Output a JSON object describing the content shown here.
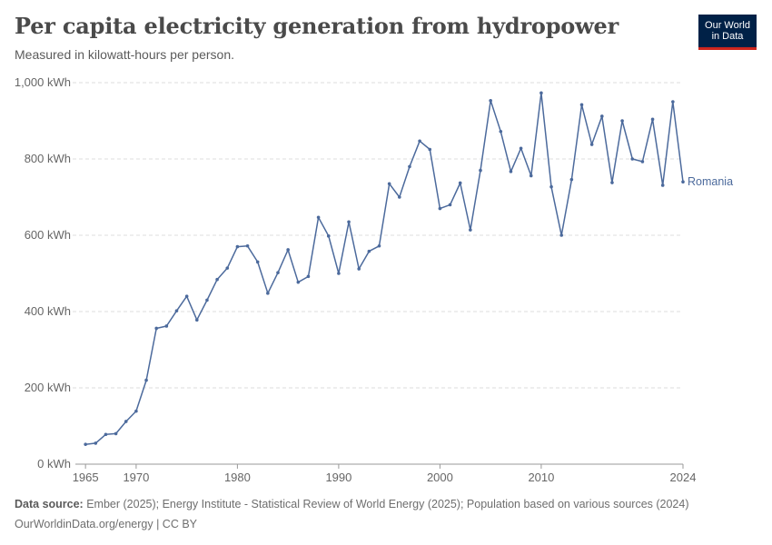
{
  "header": {
    "title": "Per capita electricity generation from hydropower",
    "subtitle": "Measured in kilowatt-hours per person."
  },
  "logo": {
    "line1": "Our World",
    "line2": "in Data",
    "bg_color": "#002147",
    "accent_color": "#ce261e"
  },
  "footer": {
    "source_label": "Data source:",
    "source_text": " Ember (2025); Energy Institute - Statistical Review of World Energy (2025); Population based on various sources (2024)",
    "credit": "OurWorldinData.org/energy | CC BY"
  },
  "chart_data": {
    "type": "line",
    "title": "Per capita electricity generation from hydropower",
    "subtitle": "Measured in kilowatt-hours per person.",
    "xlabel": "",
    "ylabel": "",
    "xlim": [
      1964,
      2024
    ],
    "ylim": [
      0,
      1000
    ],
    "x_ticks": [
      1965,
      1970,
      1980,
      1990,
      2000,
      2010,
      2024
    ],
    "y_ticks": [
      0,
      200,
      400,
      600,
      800,
      1000
    ],
    "y_tick_labels": [
      "0 kWh",
      "200 kWh",
      "400 kWh",
      "600 kWh",
      "800 kWh",
      "1,000 kWh"
    ],
    "grid": "horizontal dashed",
    "line_color": "#4c6a9c",
    "series": [
      {
        "name": "Romania",
        "x": [
          1965,
          1966,
          1967,
          1968,
          1969,
          1970,
          1971,
          1972,
          1973,
          1974,
          1975,
          1976,
          1977,
          1978,
          1979,
          1980,
          1981,
          1982,
          1983,
          1984,
          1985,
          1986,
          1987,
          1988,
          1989,
          1990,
          1991,
          1992,
          1993,
          1994,
          1995,
          1996,
          1997,
          1998,
          1999,
          2000,
          2001,
          2002,
          2003,
          2004,
          2005,
          2006,
          2007,
          2008,
          2009,
          2010,
          2011,
          2012,
          2013,
          2014,
          2015,
          2016,
          2017,
          2018,
          2019,
          2020,
          2021,
          2022,
          2023,
          2024
        ],
        "values": [
          52,
          55,
          78,
          80,
          112,
          139,
          220,
          356,
          362,
          402,
          440,
          378,
          430,
          484,
          514,
          570,
          572,
          530,
          448,
          502,
          562,
          477,
          492,
          647,
          598,
          500,
          635,
          512,
          558,
          572,
          735,
          700,
          780,
          847,
          825,
          670,
          680,
          737,
          614,
          770,
          953,
          872,
          767,
          828,
          756,
          973,
          727,
          600,
          746,
          942,
          838,
          912,
          738,
          900,
          800,
          793,
          904,
          731,
          950,
          740
        ]
      }
    ]
  }
}
